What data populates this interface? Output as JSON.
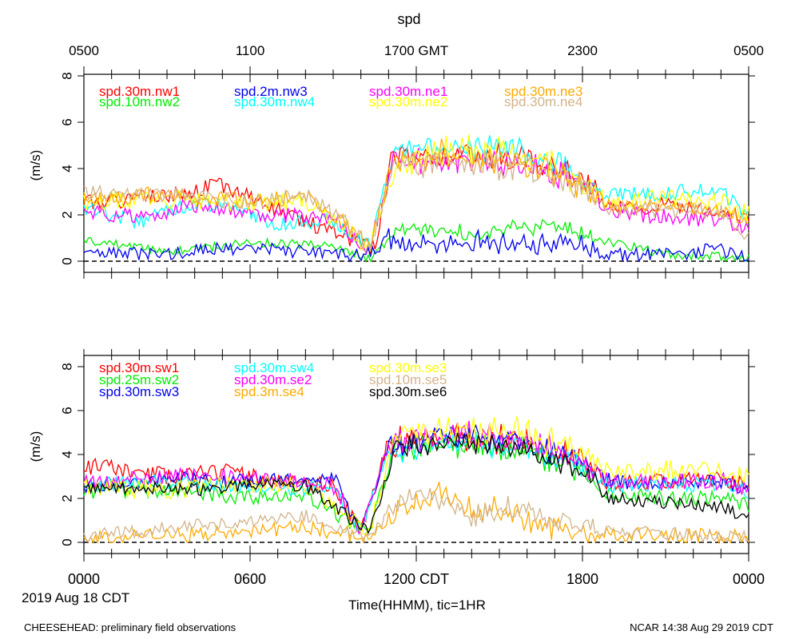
{
  "title": "spd",
  "top_axis": {
    "ticks": [
      "0500",
      "1100",
      "1700 GMT",
      "2300",
      "0500"
    ]
  },
  "bottom_axis": {
    "ticks": [
      "0000",
      "0600",
      "1200 CDT",
      "1800",
      "0000"
    ],
    "date_label": "2019 Aug 18 CDT",
    "xlabel": "Time(HHMM), tic=1HR"
  },
  "footer": {
    "left": "CHEESEHEAD: preliminary field observations",
    "right": "NCAR 14:38 Aug 29 2019 CDT"
  },
  "chart_data": [
    {
      "type": "line",
      "ylabel": "(m/s)",
      "ylim": [
        -0.5,
        8.5
      ],
      "xlim_hours": [
        0,
        24
      ],
      "yticks": [
        0,
        2,
        4,
        6,
        8
      ],
      "series": [
        {
          "name": "spd.30m.nw1",
          "color": "#ff0000",
          "key_points": [
            [
              0,
              2.5
            ],
            [
              3,
              2.8
            ],
            [
              5,
              3.3
            ],
            [
              7,
              2.2
            ],
            [
              9.5,
              1.0
            ],
            [
              10.5,
              0.6
            ],
            [
              11.2,
              4.8
            ],
            [
              13,
              4.6
            ],
            [
              16,
              4.4
            ],
            [
              18,
              3.5
            ],
            [
              19,
              2.3
            ],
            [
              21,
              2.4
            ],
            [
              23,
              2.3
            ],
            [
              24,
              1.8
            ]
          ],
          "noise": 0.35,
          "seed": 1
        },
        {
          "name": "spd.10m.nw2",
          "color": "#00ee00",
          "key_points": [
            [
              0,
              0.9
            ],
            [
              3,
              0.4
            ],
            [
              6,
              0.8
            ],
            [
              9,
              0.7
            ],
            [
              10.3,
              0.1
            ],
            [
              11.5,
              1.5
            ],
            [
              14,
              1.2
            ],
            [
              17,
              1.6
            ],
            [
              19,
              0.8
            ],
            [
              21,
              0.3
            ],
            [
              23,
              0.2
            ],
            [
              24,
              0.1
            ]
          ],
          "noise": 0.2,
          "seed": 2
        },
        {
          "name": "spd.2m.nw3",
          "color": "#0000ee",
          "key_points": [
            [
              0,
              0.3
            ],
            [
              3,
              0.3
            ],
            [
              5,
              0.6
            ],
            [
              8,
              0.4
            ],
            [
              10,
              0.2
            ],
            [
              11,
              0.9
            ],
            [
              14,
              0.8
            ],
            [
              17,
              0.7
            ],
            [
              19,
              0.3
            ],
            [
              21,
              0.3
            ],
            [
              23,
              0.5
            ],
            [
              24,
              0.1
            ]
          ],
          "noise": 0.3,
          "seed": 3
        },
        {
          "name": "spd.30m.nw4",
          "color": "#00ffff",
          "key_points": [
            [
              0,
              2.3
            ],
            [
              2,
              1.7
            ],
            [
              4,
              2.6
            ],
            [
              6,
              2.1
            ],
            [
              7,
              1.6
            ],
            [
              9,
              1.8
            ],
            [
              10.3,
              0.7
            ],
            [
              11.2,
              4.8
            ],
            [
              13,
              5.0
            ],
            [
              16,
              4.7
            ],
            [
              18,
              3.6
            ],
            [
              19,
              2.8
            ],
            [
              21,
              3.0
            ],
            [
              23,
              3.0
            ],
            [
              24,
              1.9
            ]
          ],
          "noise": 0.35,
          "seed": 4
        },
        {
          "name": "spd.30m.ne1",
          "color": "#ff00ff",
          "key_points": [
            [
              0,
              2.1
            ],
            [
              2,
              1.9
            ],
            [
              4,
              2.4
            ],
            [
              6,
              2.0
            ],
            [
              9,
              1.9
            ],
            [
              10.3,
              0.5
            ],
            [
              11.2,
              4.4
            ],
            [
              13,
              4.3
            ],
            [
              16,
              4.1
            ],
            [
              18,
              3.4
            ],
            [
              19,
              2.2
            ],
            [
              21,
              1.9
            ],
            [
              23,
              1.8
            ],
            [
              24,
              1.4
            ]
          ],
          "noise": 0.35,
          "seed": 5
        },
        {
          "name": "spd.30m.ne2",
          "color": "#ffff00",
          "key_points": [
            [
              0,
              2.6
            ],
            [
              3,
              2.7
            ],
            [
              6,
              2.5
            ],
            [
              8,
              2.6
            ],
            [
              9.5,
              1.5
            ],
            [
              10.3,
              0.5
            ],
            [
              11.2,
              4.2
            ],
            [
              13,
              4.8
            ],
            [
              16,
              4.6
            ],
            [
              18,
              3.4
            ],
            [
              19,
              2.5
            ],
            [
              21,
              2.7
            ],
            [
              23,
              2.6
            ],
            [
              24,
              2.0
            ]
          ],
          "noise": 0.4,
          "seed": 6
        },
        {
          "name": "spd.30m.ne3",
          "color": "#ffaa00",
          "key_points": [
            [
              0,
              2.7
            ],
            [
              3,
              2.9
            ],
            [
              6,
              2.6
            ],
            [
              8,
              2.8
            ],
            [
              9.5,
              1.6
            ],
            [
              10.3,
              0.6
            ],
            [
              11.2,
              4.5
            ],
            [
              13,
              4.6
            ],
            [
              16,
              4.2
            ],
            [
              18,
              3.2
            ],
            [
              19,
              2.4
            ],
            [
              21,
              2.3
            ],
            [
              23,
              2.2
            ],
            [
              24,
              1.7
            ]
          ],
          "noise": 0.35,
          "seed": 7
        },
        {
          "name": "spd.30m.ne4",
          "color": "#d2b48c",
          "key_points": [
            [
              0,
              2.9
            ],
            [
              2,
              3.0
            ],
            [
              4,
              2.8
            ],
            [
              6,
              2.5
            ],
            [
              8,
              2.9
            ],
            [
              9.5,
              1.6
            ],
            [
              10.3,
              0.5
            ],
            [
              11.2,
              4.1
            ],
            [
              13,
              4.2
            ],
            [
              16,
              4.0
            ],
            [
              18,
              3.2
            ],
            [
              19,
              2.3
            ],
            [
              21,
              2.2
            ],
            [
              23,
              2.1
            ],
            [
              24,
              0.9
            ]
          ],
          "noise": 0.35,
          "seed": 8
        }
      ]
    },
    {
      "type": "line",
      "ylabel": "(m/s)",
      "ylim": [
        -0.5,
        8.5
      ],
      "xlim_hours": [
        0,
        24
      ],
      "yticks": [
        0,
        2,
        4,
        6,
        8
      ],
      "series": [
        {
          "name": "spd.30m.sw1",
          "color": "#ff0000",
          "key_points": [
            [
              0,
              3.5
            ],
            [
              3,
              3.0
            ],
            [
              5,
              3.2
            ],
            [
              7,
              2.8
            ],
            [
              9,
              2.6
            ],
            [
              10,
              0.5
            ],
            [
              11,
              4.5
            ],
            [
              13,
              4.8
            ],
            [
              16,
              4.6
            ],
            [
              18,
              3.8
            ],
            [
              19,
              2.6
            ],
            [
              21,
              2.8
            ],
            [
              23,
              2.9
            ],
            [
              24,
              2.6
            ]
          ],
          "noise": 0.4,
          "seed": 11
        },
        {
          "name": "spd.25m.sw2",
          "color": "#00ee00",
          "key_points": [
            [
              0,
              2.3
            ],
            [
              2,
              2.4
            ],
            [
              4,
              2.3
            ],
            [
              6,
              2.0
            ],
            [
              8,
              2.2
            ],
            [
              9.5,
              1.0
            ],
            [
              10.3,
              0.5
            ],
            [
              11.2,
              4.2
            ],
            [
              13,
              4.6
            ],
            [
              16,
              4.2
            ],
            [
              18,
              3.0
            ],
            [
              19,
              2.2
            ],
            [
              21,
              2.0
            ],
            [
              23,
              2.0
            ],
            [
              24,
              1.7
            ]
          ],
          "noise": 0.35,
          "seed": 12
        },
        {
          "name": "spd.30m.sw3",
          "color": "#0000ee",
          "key_points": [
            [
              0,
              2.6
            ],
            [
              3,
              2.9
            ],
            [
              5,
              2.8
            ],
            [
              7,
              2.8
            ],
            [
              9,
              3.0
            ],
            [
              10,
              0.5
            ],
            [
              11,
              4.3
            ],
            [
              13,
              4.9
            ],
            [
              16,
              4.6
            ],
            [
              18,
              3.6
            ],
            [
              19,
              2.8
            ],
            [
              21,
              2.7
            ],
            [
              23,
              2.8
            ],
            [
              24,
              2.3
            ]
          ],
          "noise": 0.35,
          "seed": 13
        },
        {
          "name": "spd.30m.sw4",
          "color": "#00ffff",
          "key_points": [
            [
              0,
              2.6
            ],
            [
              3,
              2.8
            ],
            [
              5,
              2.6
            ],
            [
              7,
              2.5
            ],
            [
              9,
              2.4
            ],
            [
              10,
              0.6
            ],
            [
              11,
              4.0
            ],
            [
              13,
              4.5
            ],
            [
              16,
              4.4
            ],
            [
              18,
              3.4
            ],
            [
              19,
              2.6
            ],
            [
              21,
              2.6
            ],
            [
              23,
              2.7
            ],
            [
              24,
              2.3
            ]
          ],
          "noise": 0.35,
          "seed": 14
        },
        {
          "name": "spd.30m.se2",
          "color": "#ff00ff",
          "key_points": [
            [
              0,
              2.7
            ],
            [
              3,
              3.0
            ],
            [
              5,
              3.0
            ],
            [
              7,
              2.8
            ],
            [
              9,
              2.6
            ],
            [
              10,
              0.6
            ],
            [
              11,
              4.6
            ],
            [
              13,
              4.8
            ],
            [
              16,
              4.7
            ],
            [
              18,
              3.7
            ],
            [
              19,
              2.7
            ],
            [
              21,
              2.8
            ],
            [
              23,
              2.8
            ],
            [
              24,
              2.4
            ]
          ],
          "noise": 0.4,
          "seed": 15
        },
        {
          "name": "spd.3m.se4",
          "color": "#ffaa00",
          "key_points": [
            [
              0,
              0.2
            ],
            [
              3,
              0.3
            ],
            [
              6,
              0.5
            ],
            [
              8,
              0.7
            ],
            [
              9.5,
              0.4
            ],
            [
              10.3,
              0.1
            ],
            [
              11.3,
              1.4
            ],
            [
              13,
              2.3
            ],
            [
              14,
              1.6
            ],
            [
              15.5,
              1.3
            ],
            [
              17,
              0.6
            ],
            [
              19,
              0.4
            ],
            [
              21,
              0.3
            ],
            [
              23,
              0.3
            ],
            [
              24,
              0.2
            ]
          ],
          "noise": 0.35,
          "seed": 16
        },
        {
          "name": "spd.30m.se3",
          "color": "#ffff00",
          "key_points": [
            [
              0,
              2.6
            ],
            [
              3,
              2.4
            ],
            [
              6,
              2.7
            ],
            [
              8,
              2.6
            ],
            [
              9.5,
              1.2
            ],
            [
              10.3,
              0.5
            ],
            [
              11.2,
              4.8
            ],
            [
              13,
              5.2
            ],
            [
              16,
              5.0
            ],
            [
              18,
              4.0
            ],
            [
              19,
              3.2
            ],
            [
              21,
              3.3
            ],
            [
              23,
              3.2
            ],
            [
              24,
              3.0
            ]
          ],
          "noise": 0.45,
          "seed": 17
        },
        {
          "name": "spd.10m.se5",
          "color": "#d2b48c",
          "key_points": [
            [
              0,
              0.3
            ],
            [
              2,
              0.5
            ],
            [
              4,
              0.8
            ],
            [
              6,
              0.9
            ],
            [
              8,
              1.2
            ],
            [
              9.5,
              0.6
            ],
            [
              10.3,
              0.3
            ],
            [
              11.3,
              1.6
            ],
            [
              12,
              2.4
            ],
            [
              13,
              1.9
            ],
            [
              14,
              1.1
            ],
            [
              15.5,
              1.6
            ],
            [
              17,
              0.9
            ],
            [
              19,
              0.5
            ],
            [
              21,
              0.4
            ],
            [
              23,
              0.3
            ],
            [
              24,
              0.3
            ]
          ],
          "noise": 0.3,
          "seed": 18
        },
        {
          "name": "spd.30m.se6",
          "color": "#000000",
          "key_points": [
            [
              0,
              2.4
            ],
            [
              2,
              2.5
            ],
            [
              4,
              2.4
            ],
            [
              6,
              2.6
            ],
            [
              8,
              2.6
            ],
            [
              9.5,
              1.2
            ],
            [
              10.3,
              0.4
            ],
            [
              11.2,
              4.2
            ],
            [
              13,
              4.6
            ],
            [
              16,
              4.3
            ],
            [
              18,
              3.2
            ],
            [
              19,
              2.0
            ],
            [
              21,
              1.8
            ],
            [
              23,
              1.6
            ],
            [
              24,
              1.2
            ]
          ],
          "noise": 0.3,
          "seed": 19
        }
      ]
    }
  ]
}
